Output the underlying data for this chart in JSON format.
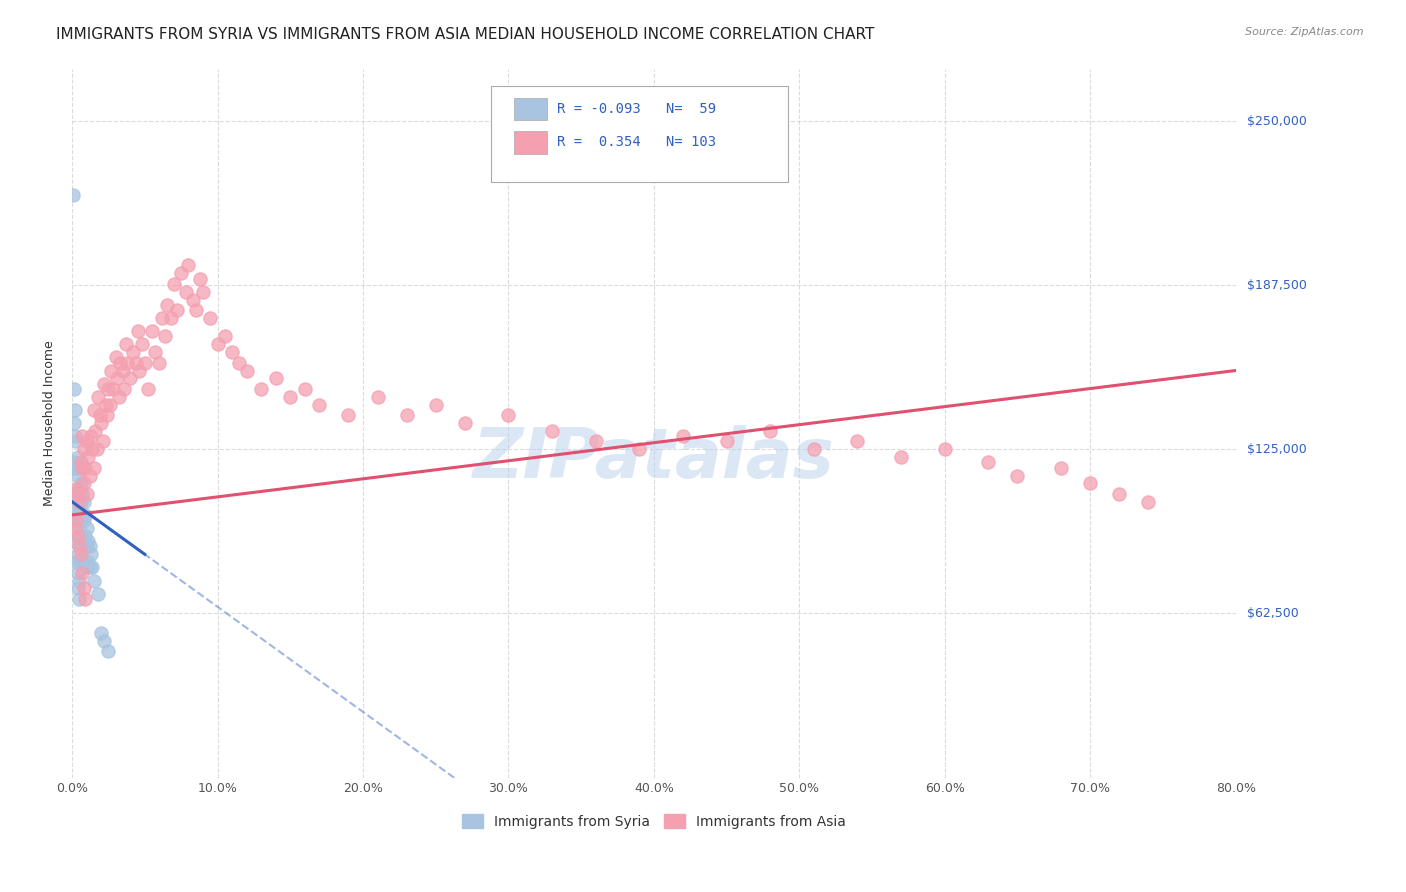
{
  "title": "IMMIGRANTS FROM SYRIA VS IMMIGRANTS FROM ASIA MEDIAN HOUSEHOLD INCOME CORRELATION CHART",
  "source": "Source: ZipAtlas.com",
  "ylabel": "Median Household Income",
  "y_ticks": [
    62500,
    125000,
    187500,
    250000
  ],
  "y_tick_labels": [
    "$62,500",
    "$125,000",
    "$187,500",
    "$250,000"
  ],
  "x_min": 0.0,
  "x_max": 0.8,
  "y_min": 0,
  "y_max": 270000,
  "syria_R": -0.093,
  "syria_N": 59,
  "asia_R": 0.354,
  "asia_N": 103,
  "syria_color": "#a8c4e0",
  "asia_color": "#f4a0b0",
  "syria_line_color": "#3060c0",
  "asia_line_color": "#e05070",
  "legend_color": "#3060c0",
  "background_color": "#ffffff",
  "grid_color": "#cccccc",
  "watermark_color": "#b8d0ea",
  "title_fontsize": 11,
  "axis_label_fontsize": 9,
  "tick_label_fontsize": 9,
  "syria_x": [
    0.0005,
    0.001,
    0.001,
    0.001,
    0.002,
    0.002,
    0.002,
    0.002,
    0.002,
    0.003,
    0.003,
    0.003,
    0.003,
    0.003,
    0.003,
    0.004,
    0.004,
    0.004,
    0.004,
    0.004,
    0.004,
    0.004,
    0.004,
    0.005,
    0.005,
    0.005,
    0.005,
    0.005,
    0.005,
    0.005,
    0.005,
    0.006,
    0.006,
    0.006,
    0.006,
    0.006,
    0.007,
    0.007,
    0.007,
    0.008,
    0.008,
    0.008,
    0.009,
    0.009,
    0.01,
    0.01,
    0.01,
    0.011,
    0.011,
    0.012,
    0.012,
    0.013,
    0.014,
    0.015,
    0.018,
    0.02,
    0.022,
    0.025,
    0.001
  ],
  "syria_y": [
    222000,
    148000,
    135000,
    120000,
    140000,
    130000,
    118000,
    108000,
    98000,
    128000,
    118000,
    108000,
    98000,
    90000,
    82000,
    122000,
    115000,
    108000,
    100000,
    92000,
    85000,
    78000,
    72000,
    118000,
    110000,
    102000,
    95000,
    88000,
    82000,
    75000,
    68000,
    112000,
    105000,
    98000,
    90000,
    83000,
    108000,
    100000,
    92000,
    105000,
    98000,
    90000,
    100000,
    92000,
    95000,
    88000,
    80000,
    90000,
    82000,
    88000,
    80000,
    85000,
    80000,
    75000,
    70000,
    55000,
    52000,
    48000,
    105000
  ],
  "asia_x": [
    0.002,
    0.003,
    0.004,
    0.005,
    0.006,
    0.007,
    0.007,
    0.008,
    0.008,
    0.009,
    0.01,
    0.01,
    0.011,
    0.012,
    0.013,
    0.014,
    0.015,
    0.015,
    0.016,
    0.017,
    0.018,
    0.019,
    0.02,
    0.021,
    0.022,
    0.023,
    0.024,
    0.025,
    0.026,
    0.027,
    0.028,
    0.03,
    0.031,
    0.032,
    0.033,
    0.035,
    0.036,
    0.037,
    0.038,
    0.04,
    0.042,
    0.044,
    0.045,
    0.046,
    0.048,
    0.05,
    0.052,
    0.055,
    0.057,
    0.06,
    0.062,
    0.064,
    0.065,
    0.068,
    0.07,
    0.072,
    0.075,
    0.078,
    0.08,
    0.083,
    0.085,
    0.088,
    0.09,
    0.095,
    0.1,
    0.105,
    0.11,
    0.115,
    0.12,
    0.13,
    0.14,
    0.15,
    0.16,
    0.17,
    0.19,
    0.21,
    0.23,
    0.25,
    0.27,
    0.3,
    0.33,
    0.36,
    0.39,
    0.42,
    0.45,
    0.48,
    0.51,
    0.54,
    0.57,
    0.6,
    0.63,
    0.65,
    0.68,
    0.7,
    0.72,
    0.74,
    0.003,
    0.004,
    0.005,
    0.006,
    0.007,
    0.008,
    0.009
  ],
  "asia_y": [
    95000,
    110000,
    108000,
    105000,
    120000,
    118000,
    130000,
    112000,
    125000,
    118000,
    108000,
    128000,
    122000,
    115000,
    130000,
    125000,
    140000,
    118000,
    132000,
    125000,
    145000,
    138000,
    135000,
    128000,
    150000,
    142000,
    138000,
    148000,
    142000,
    155000,
    148000,
    160000,
    152000,
    145000,
    158000,
    155000,
    148000,
    165000,
    158000,
    152000,
    162000,
    158000,
    170000,
    155000,
    165000,
    158000,
    148000,
    170000,
    162000,
    158000,
    175000,
    168000,
    180000,
    175000,
    188000,
    178000,
    192000,
    185000,
    195000,
    182000,
    178000,
    190000,
    185000,
    175000,
    165000,
    168000,
    162000,
    158000,
    155000,
    148000,
    152000,
    145000,
    148000,
    142000,
    138000,
    145000,
    138000,
    142000,
    135000,
    138000,
    132000,
    128000,
    125000,
    130000,
    128000,
    132000,
    125000,
    128000,
    122000,
    125000,
    120000,
    115000,
    118000,
    112000,
    108000,
    105000,
    98000,
    92000,
    88000,
    85000,
    78000,
    72000,
    68000
  ],
  "syria_trend_x0": 0.0,
  "syria_trend_y0": 105000,
  "syria_trend_x1": 0.05,
  "syria_trend_y1": 85000,
  "asia_trend_x0": 0.0,
  "asia_trend_y0": 100000,
  "asia_trend_x1": 0.8,
  "asia_trend_y1": 155000
}
